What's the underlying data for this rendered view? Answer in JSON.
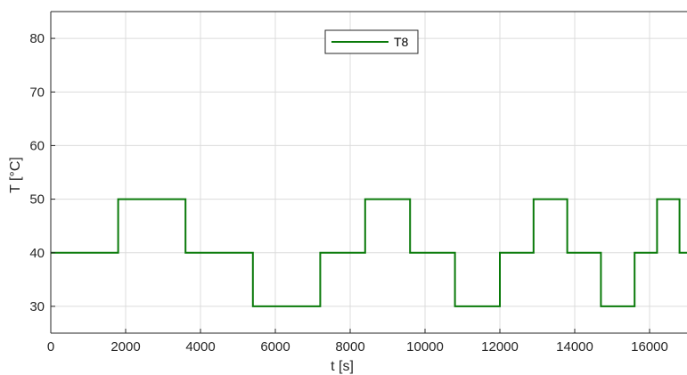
{
  "chart_data": {
    "type": "line",
    "title": "",
    "xlabel": "t [s]",
    "ylabel": "T [°C]",
    "xlim": [
      0,
      17000
    ],
    "ylim": [
      25,
      85
    ],
    "xticks": [
      0,
      2000,
      4000,
      6000,
      8000,
      10000,
      12000,
      14000,
      16000
    ],
    "yticks": [
      30,
      40,
      50,
      60,
      70,
      80
    ],
    "grid": true,
    "legend_position": "top-center",
    "series": [
      {
        "name": "T8",
        "color": "#0a7a0a",
        "step": "post",
        "x": [
          0,
          1800,
          3600,
          5400,
          7200,
          8400,
          9600,
          10800,
          12000,
          12900,
          13800,
          14700,
          15600,
          16200,
          16800,
          17000
        ],
        "y": [
          40,
          50,
          40,
          30,
          40,
          50,
          40,
          30,
          40,
          50,
          40,
          30,
          40,
          50,
          40,
          40
        ]
      }
    ]
  }
}
